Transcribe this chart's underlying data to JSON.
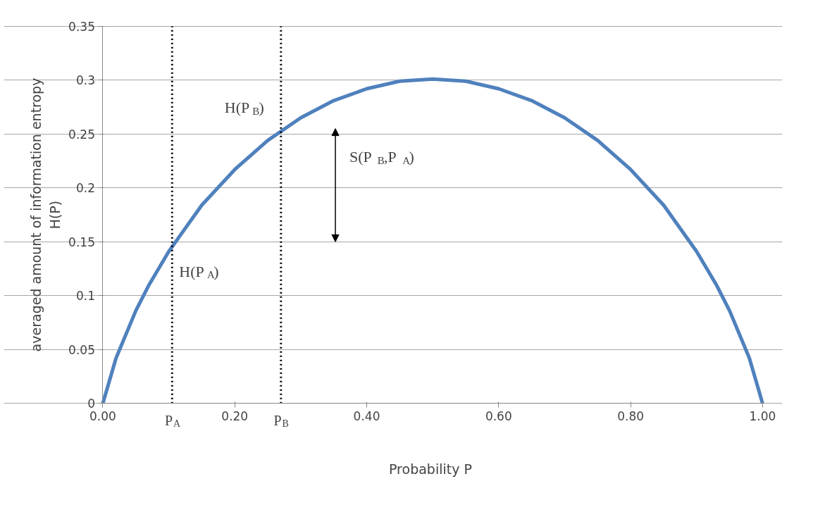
{
  "chart_data": {
    "type": "line",
    "xlabel": "Probability  P",
    "ylabel": "averaged amount of information entropy\nH(P)",
    "x": [
      0,
      0.02,
      0.05,
      0.07,
      0.1,
      0.15,
      0.2,
      0.25,
      0.3,
      0.35,
      0.4,
      0.45,
      0.5,
      0.55,
      0.6,
      0.65,
      0.7,
      0.75,
      0.8,
      0.85,
      0.9,
      0.93,
      0.95,
      0.98,
      1
    ],
    "series": [
      {
        "color": "#4f81bd",
        "values": [
          0,
          0.042,
          0.086,
          0.11,
          0.141,
          0.184,
          0.217,
          0.244,
          0.265,
          0.281,
          0.292,
          0.299,
          0.301,
          0.299,
          0.292,
          0.281,
          0.265,
          0.244,
          0.217,
          0.184,
          0.141,
          0.11,
          0.086,
          0.042,
          0
        ]
      }
    ],
    "xlim": [
      0,
      1
    ],
    "ylim": [
      0,
      0.35
    ],
    "xticks": [
      {
        "value": 0,
        "label": "0.00"
      },
      {
        "value": 0.2,
        "label": "0.20"
      },
      {
        "value": 0.4,
        "label": "0.40"
      },
      {
        "value": 0.6,
        "label": "0.60"
      },
      {
        "value": 0.8,
        "label": "0.80"
      },
      {
        "value": 1,
        "label": "1.00"
      }
    ],
    "yticks": [
      0,
      0.05,
      0.1,
      0.15,
      0.2,
      0.25,
      0.3,
      0.35
    ],
    "grid": "y",
    "legend": false,
    "marker": "none",
    "line_style": "solid",
    "ref_lines": [
      {
        "axis": "x",
        "value": 0.105,
        "label": "P$_{A}$",
        "color": "#000000",
        "line_style": "dotted"
      },
      {
        "axis": "x",
        "value": 0.27,
        "label": "P$_{B}$",
        "color": "#000000",
        "line_style": "dotted"
      }
    ],
    "annotations": [
      {
        "text": "H(P$_{A}$)",
        "x": 0.105,
        "y": 0.15
      },
      {
        "text": "H(P$_{B}$)",
        "x": 0.27,
        "y": 0.255
      },
      "S(P$_{B}$,P$_{A}$)"
    ]
  }
}
